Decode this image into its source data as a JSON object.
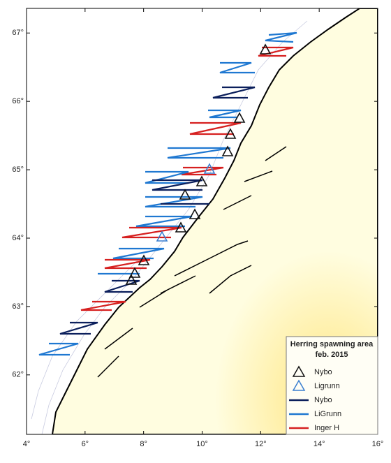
{
  "map": {
    "title": "Herring spawning area",
    "subtitle": "feb. 2015",
    "xlim": [
      4,
      16
    ],
    "ylim": [
      61.13,
      67.36
    ],
    "xticks": [
      {
        "value": 4,
        "label": "4°"
      },
      {
        "value": 6,
        "label": "6°"
      },
      {
        "value": 8,
        "label": "8°"
      },
      {
        "value": 10,
        "label": "10°"
      },
      {
        "value": 12,
        "label": "12°"
      },
      {
        "value": 14,
        "label": "14°"
      },
      {
        "value": 16,
        "label": "16°"
      }
    ],
    "yticks": [
      {
        "value": 62,
        "label": "62°"
      },
      {
        "value": 63,
        "label": "63°"
      },
      {
        "value": 64,
        "label": "64°"
      },
      {
        "value": 65,
        "label": "65°"
      },
      {
        "value": 66,
        "label": "66°"
      },
      {
        "value": 67,
        "label": "67°"
      }
    ],
    "legend": [
      {
        "name": "Nybo",
        "symbol": "triangle",
        "color": "#111111"
      },
      {
        "name": "Ligrunn",
        "symbol": "triangle",
        "color": "#3a7fd0"
      },
      {
        "name": "Nybo",
        "symbol": "line",
        "color": "#0b1f5c"
      },
      {
        "name": "LiGrunn",
        "symbol": "line",
        "color": "#1f78d1"
      },
      {
        "name": "Inger H",
        "symbol": "line",
        "color": "#d62020"
      }
    ]
  }
}
